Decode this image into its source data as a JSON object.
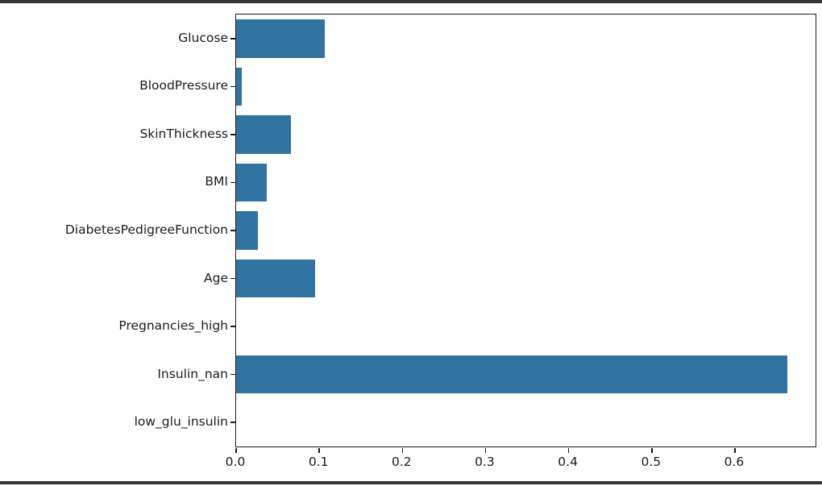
{
  "chart_data": {
    "type": "bar",
    "orientation": "horizontal",
    "title": "",
    "categories": [
      "Glucose",
      "BloodPressure",
      "SkinThickness",
      "BMI",
      "DiabetesPedigreeFunction",
      "Age",
      "Pregnancies_high",
      "Insulin_nan",
      "low_glu_insulin"
    ],
    "values": [
      0.107,
      0.007,
      0.066,
      0.037,
      0.026,
      0.095,
      0.0,
      0.663,
      0.0
    ],
    "x_ticks": [
      0.0,
      0.1,
      0.2,
      0.3,
      0.4,
      0.5,
      0.6
    ],
    "x_tick_labels": [
      "0.0",
      "0.1",
      "0.2",
      "0.3",
      "0.4",
      "0.5",
      "0.6"
    ],
    "xlim": [
      0,
      0.697
    ],
    "bar_color": "#3274a1",
    "grid": false,
    "legend": false
  },
  "frame": {
    "background": "#ffffff",
    "border_color": "#343434"
  }
}
